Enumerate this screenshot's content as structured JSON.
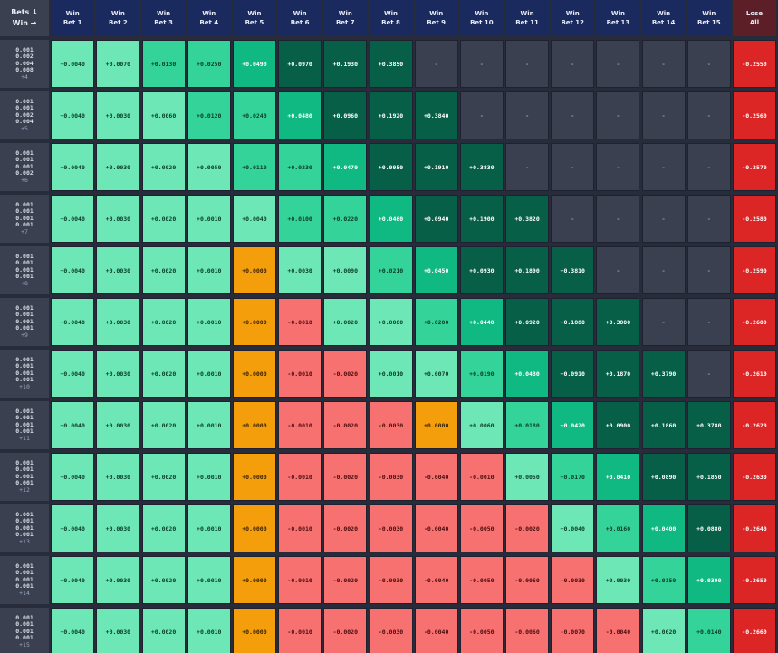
{
  "header": {
    "corner": {
      "line1": "Bets ↓",
      "line2": "Win →"
    },
    "columns": [
      {
        "line1": "Win",
        "line2": "Bet 1"
      },
      {
        "line1": "Win",
        "line2": "Bet 2"
      },
      {
        "line1": "Win",
        "line2": "Bet 3"
      },
      {
        "line1": "Win",
        "line2": "Bet 4"
      },
      {
        "line1": "Win",
        "line2": "Bet 5"
      },
      {
        "line1": "Win",
        "line2": "Bet 6"
      },
      {
        "line1": "Win",
        "line2": "Bet 7"
      },
      {
        "line1": "Win",
        "line2": "Bet 8"
      },
      {
        "line1": "Win",
        "line2": "Bet 9"
      },
      {
        "line1": "Win",
        "line2": "Bet 10"
      },
      {
        "line1": "Win",
        "line2": "Bet 11"
      },
      {
        "line1": "Win",
        "line2": "Bet 12"
      },
      {
        "line1": "Win",
        "line2": "Bet 13"
      },
      {
        "line1": "Win",
        "line2": "Bet 14"
      },
      {
        "line1": "Win",
        "line2": "Bet 15"
      },
      {
        "line1": "Lose",
        "line2": "All"
      }
    ]
  },
  "rows": [
    {
      "label": [
        "0.001",
        "0.002",
        "0.004",
        "0.008"
      ],
      "extra": "+4",
      "cells": [
        "+0.0040",
        "+0.0070",
        "+0.0130",
        "+0.0250",
        "+0.0490",
        "+0.0970",
        "+0.1930",
        "+0.3850",
        "-",
        "-",
        "-",
        "-",
        "-",
        "-",
        "-",
        "-0.2550"
      ]
    },
    {
      "label": [
        "0.001",
        "0.001",
        "0.002",
        "0.004"
      ],
      "extra": "+5",
      "cells": [
        "+0.0040",
        "+0.0030",
        "+0.0060",
        "+0.0120",
        "+0.0240",
        "+0.0480",
        "+0.0960",
        "+0.1920",
        "+0.3840",
        "-",
        "-",
        "-",
        "-",
        "-",
        "-",
        "-0.2560"
      ]
    },
    {
      "label": [
        "0.001",
        "0.001",
        "0.001",
        "0.002"
      ],
      "extra": "+6",
      "cells": [
        "+0.0040",
        "+0.0030",
        "+0.0020",
        "+0.0050",
        "+0.0110",
        "+0.0230",
        "+0.0470",
        "+0.0950",
        "+0.1910",
        "+0.3830",
        "-",
        "-",
        "-",
        "-",
        "-",
        "-0.2570"
      ]
    },
    {
      "label": [
        "0.001",
        "0.001",
        "0.001",
        "0.001"
      ],
      "extra": "+7",
      "cells": [
        "+0.0040",
        "+0.0030",
        "+0.0020",
        "+0.0010",
        "+0.0040",
        "+0.0100",
        "+0.0220",
        "+0.0460",
        "+0.0940",
        "+0.1900",
        "+0.3820",
        "-",
        "-",
        "-",
        "-",
        "-0.2580"
      ]
    },
    {
      "label": [
        "0.001",
        "0.001",
        "0.001",
        "0.001"
      ],
      "extra": "+8",
      "cells": [
        "+0.0040",
        "+0.0030",
        "+0.0020",
        "+0.0010",
        "+0.0000",
        "+0.0030",
        "+0.0090",
        "+0.0210",
        "+0.0450",
        "+0.0930",
        "+0.1890",
        "+0.3810",
        "-",
        "-",
        "-",
        "-0.2590"
      ]
    },
    {
      "label": [
        "0.001",
        "0.001",
        "0.001",
        "0.001"
      ],
      "extra": "+9",
      "cells": [
        "+0.0040",
        "+0.0030",
        "+0.0020",
        "+0.0010",
        "+0.0000",
        "-0.0010",
        "+0.0020",
        "+0.0080",
        "+0.0200",
        "+0.0440",
        "+0.0920",
        "+0.1880",
        "+0.3800",
        "-",
        "-",
        "-0.2600"
      ]
    },
    {
      "label": [
        "0.001",
        "0.001",
        "0.001",
        "0.001"
      ],
      "extra": "+10",
      "cells": [
        "+0.0040",
        "+0.0030",
        "+0.0020",
        "+0.0010",
        "+0.0000",
        "-0.0010",
        "-0.0020",
        "+0.0010",
        "+0.0070",
        "+0.0190",
        "+0.0430",
        "+0.0910",
        "+0.1870",
        "+0.3790",
        "-",
        "-0.2610"
      ]
    },
    {
      "label": [
        "0.001",
        "0.001",
        "0.001",
        "0.001"
      ],
      "extra": "+11",
      "cells": [
        "+0.0040",
        "+0.0030",
        "+0.0020",
        "+0.0010",
        "+0.0000",
        "-0.0010",
        "-0.0020",
        "-0.0030",
        "+0.0000",
        "+0.0060",
        "+0.0180",
        "+0.0420",
        "+0.0900",
        "+0.1860",
        "+0.3780",
        "-0.2620"
      ]
    },
    {
      "label": [
        "0.001",
        "0.001",
        "0.001",
        "0.001"
      ],
      "extra": "+12",
      "cells": [
        "+0.0040",
        "+0.0030",
        "+0.0020",
        "+0.0010",
        "+0.0000",
        "-0.0010",
        "-0.0020",
        "-0.0030",
        "-0.0040",
        "-0.0010",
        "+0.0050",
        "+0.0170",
        "+0.0410",
        "+0.0890",
        "+0.1850",
        "-0.2630"
      ]
    },
    {
      "label": [
        "0.001",
        "0.001",
        "0.001",
        "0.001"
      ],
      "extra": "+13",
      "cells": [
        "+0.0040",
        "+0.0030",
        "+0.0020",
        "+0.0010",
        "+0.0000",
        "-0.0010",
        "-0.0020",
        "-0.0030",
        "-0.0040",
        "-0.0050",
        "-0.0020",
        "+0.0040",
        "+0.0160",
        "+0.0400",
        "+0.0880",
        "-0.2640"
      ]
    },
    {
      "label": [
        "0.001",
        "0.001",
        "0.001",
        "0.001"
      ],
      "extra": "+14",
      "cells": [
        "+0.0040",
        "+0.0030",
        "+0.0020",
        "+0.0010",
        "+0.0000",
        "-0.0010",
        "-0.0020",
        "-0.0030",
        "-0.0040",
        "-0.0050",
        "-0.0060",
        "-0.0030",
        "+0.0030",
        "+0.0150",
        "+0.0390",
        "-0.2650"
      ]
    },
    {
      "label": [
        "0.001",
        "0.001",
        "0.001",
        "0.001"
      ],
      "extra": "+15",
      "cells": [
        "+0.0040",
        "+0.0030",
        "+0.0020",
        "+0.0010",
        "+0.0000",
        "-0.0010",
        "-0.0020",
        "-0.0030",
        "-0.0040",
        "-0.0050",
        "-0.0060",
        "-0.0070",
        "-0.0040",
        "+0.0020",
        "+0.0140",
        "-0.2660"
      ]
    }
  ],
  "colors": {
    "header_bg": "#1b2a5e",
    "lose_header_bg": "#5c1f28",
    "positive_light": "#6ee7b7",
    "positive_medium": "#34d399",
    "positive_bright": "#10b981",
    "positive_dark": "#065f46",
    "zero": "#f59e0b",
    "negative": "#f87171",
    "not_applicable": "#3a4050",
    "lose_all": "#dc2626"
  }
}
